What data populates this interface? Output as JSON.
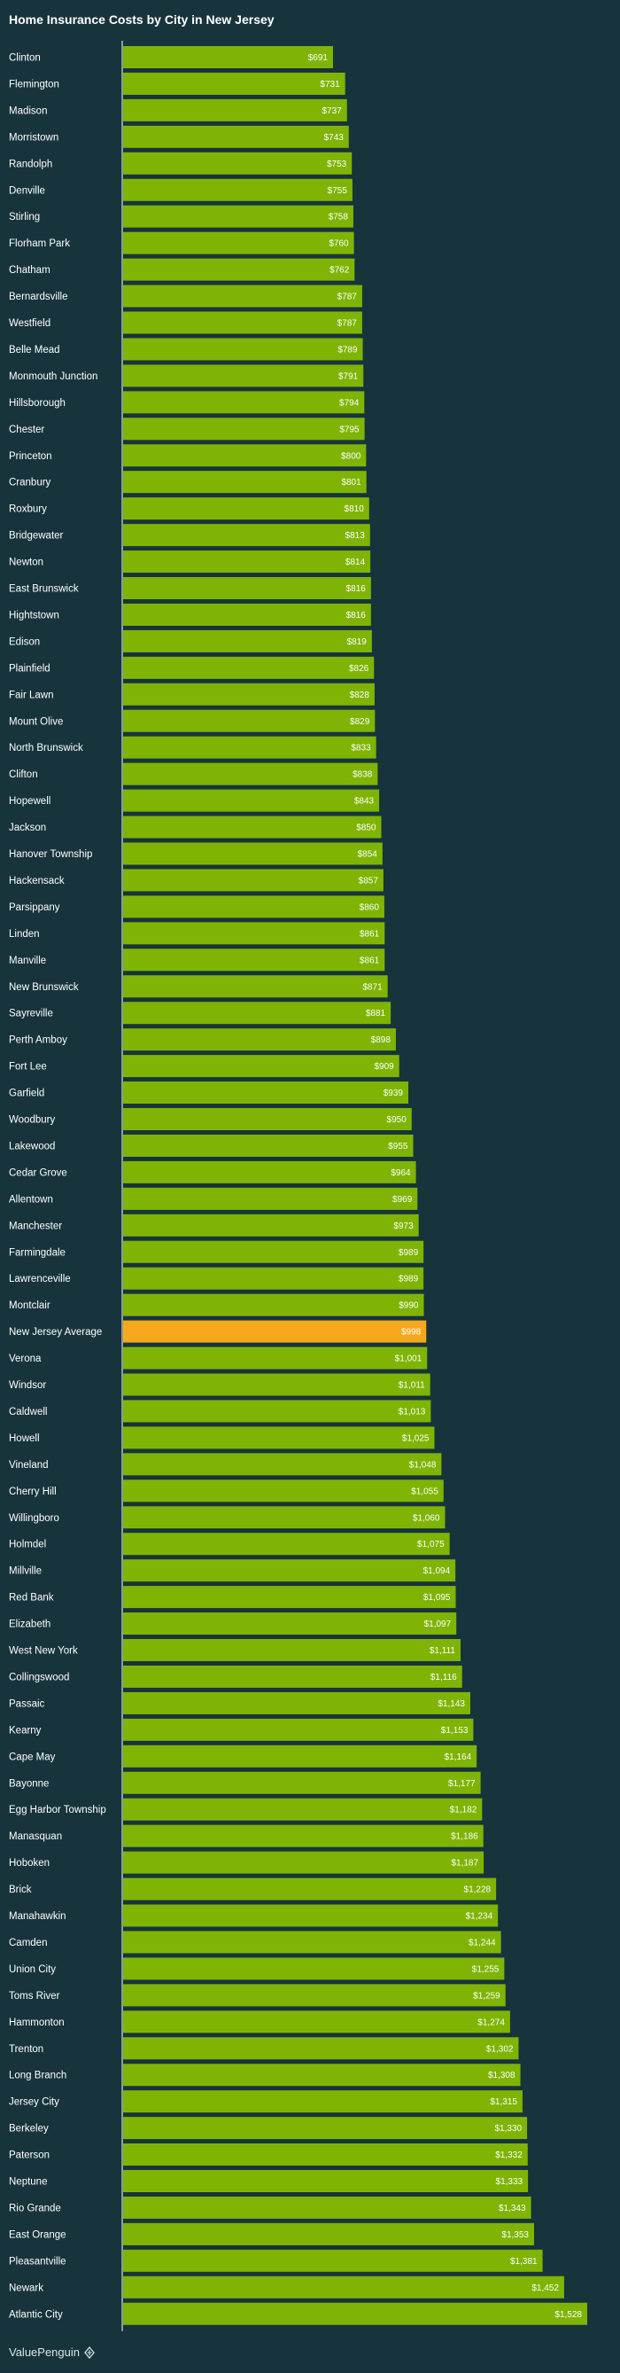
{
  "chart_data": {
    "type": "bar",
    "orientation": "horizontal",
    "title": "Home Insurance Costs by City in New Jersey",
    "xlabel": "",
    "ylabel": "",
    "xlim": [
      0,
      1580
    ],
    "grid": false,
    "colors": {
      "bar": "#7fb404",
      "highlight": "#f5a81c",
      "background": "#17343c",
      "axis": "#ffffff"
    },
    "highlight_category": "New Jersey Average",
    "categories": [
      "Clinton",
      "Flemington",
      "Madison",
      "Morristown",
      "Randolph",
      "Denville",
      "Stirling",
      "Florham Park",
      "Chatham",
      "Bernardsville",
      "Westfield",
      "Belle Mead",
      "Monmouth Junction",
      "Hillsborough",
      "Chester",
      "Princeton",
      "Cranbury",
      "Roxbury",
      "Bridgewater",
      "Newton",
      "East Brunswick",
      "Hightstown",
      "Edison",
      "Plainfield",
      "Fair Lawn",
      "Mount Olive",
      "North Brunswick",
      "Clifton",
      "Hopewell",
      "Jackson",
      "Hanover Township",
      "Hackensack",
      "Parsippany",
      "Linden",
      "Manville",
      "New Brunswick",
      "Sayreville",
      "Perth Amboy",
      "Fort Lee",
      "Garfield",
      "Woodbury",
      "Lakewood",
      "Cedar Grove",
      "Allentown",
      "Manchester",
      "Farmingdale",
      "Lawrenceville",
      "Montclair",
      "New Jersey Average",
      "Verona",
      "Windsor",
      "Caldwell",
      "Howell",
      "Vineland",
      "Cherry Hill",
      "Willingboro",
      "Holmdel",
      "Millville",
      "Red Bank",
      "Elizabeth",
      "West New York",
      "Collingswood",
      "Passaic",
      "Kearny",
      "Cape May",
      "Bayonne",
      "Egg Harbor Township",
      "Manasquan",
      "Hoboken",
      "Brick",
      "Manahawkin",
      "Camden",
      "Union City",
      "Toms River",
      "Hammonton",
      "Trenton",
      "Long Branch",
      "Jersey City",
      "Berkeley",
      "Paterson",
      "Neptune",
      "Rio Grande",
      "East Orange",
      "Pleasantville",
      "Newark",
      "Atlantic City"
    ],
    "values": [
      691,
      731,
      737,
      743,
      753,
      755,
      758,
      760,
      762,
      787,
      787,
      789,
      791,
      794,
      795,
      800,
      801,
      810,
      813,
      814,
      816,
      816,
      819,
      826,
      828,
      829,
      833,
      838,
      843,
      850,
      854,
      857,
      860,
      861,
      861,
      871,
      881,
      898,
      909,
      939,
      950,
      955,
      964,
      969,
      973,
      989,
      989,
      990,
      998,
      1001,
      1011,
      1013,
      1025,
      1048,
      1055,
      1060,
      1075,
      1094,
      1095,
      1097,
      1111,
      1116,
      1143,
      1153,
      1164,
      1177,
      1182,
      1186,
      1187,
      1228,
      1234,
      1244,
      1255,
      1259,
      1274,
      1302,
      1308,
      1315,
      1330,
      1332,
      1333,
      1343,
      1353,
      1381,
      1452,
      1528
    ],
    "data_labels": [
      "$691",
      "$731",
      "$737",
      "$743",
      "$753",
      "$755",
      "$758",
      "$760",
      "$762",
      "$787",
      "$787",
      "$789",
      "$791",
      "$794",
      "$795",
      "$800",
      "$801",
      "$810",
      "$813",
      "$814",
      "$816",
      "$816",
      "$819",
      "$826",
      "$828",
      "$829",
      "$833",
      "$838",
      "$843",
      "$850",
      "$854",
      "$857",
      "$860",
      "$861",
      "$861",
      "$871",
      "$881",
      "$898",
      "$909",
      "$939",
      "$950",
      "$955",
      "$964",
      "$969",
      "$973",
      "$989",
      "$989",
      "$990",
      "$998",
      "$1,001",
      "$1,011",
      "$1,013",
      "$1,025",
      "$1,048",
      "$1,055",
      "$1,060",
      "$1,075",
      "$1,094",
      "$1,095",
      "$1,097",
      "$1,111",
      "$1,116",
      "$1,143",
      "$1,153",
      "$1,164",
      "$1,177",
      "$1,182",
      "$1,186",
      "$1,187",
      "$1,228",
      "$1,234",
      "$1,244",
      "$1,255",
      "$1,259",
      "$1,274",
      "$1,302",
      "$1,308",
      "$1,315",
      "$1,330",
      "$1,332",
      "$1,333",
      "$1,343",
      "$1,353",
      "$1,381",
      "$1,452",
      "$1,528"
    ]
  },
  "footer": {
    "brand": "ValuePenguin",
    "logo_icon": "valuepenguin-logo-icon"
  }
}
